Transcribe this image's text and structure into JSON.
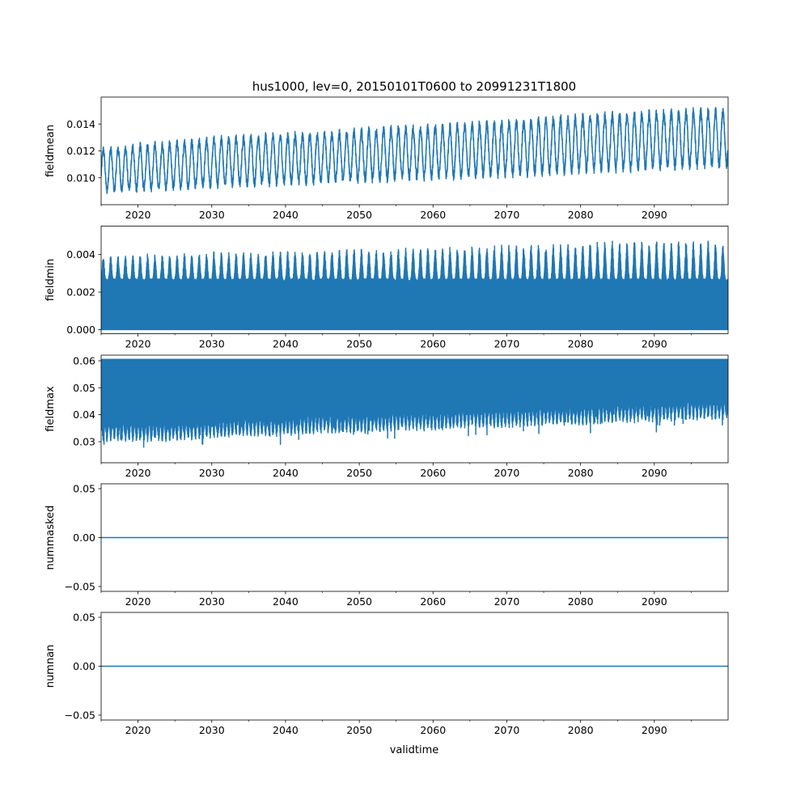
{
  "chart_data": [
    {
      "type": "line",
      "title": "hus1000, lev=0, 20150101T0600 to 20991231T1800",
      "ylabel": "fieldmean",
      "xlabel": "",
      "xlim": [
        2015,
        2100
      ],
      "ylim": [
        0.008,
        0.016
      ],
      "yticks": [
        0.01,
        0.012,
        0.014
      ],
      "ytick_labels": [
        "0.010",
        "0.012",
        "0.014"
      ],
      "color": "#1f77b4",
      "mode": "seasonal",
      "envelope_years": [
        2015,
        2020,
        2025,
        2030,
        2035,
        2040,
        2045,
        2050,
        2055,
        2060,
        2065,
        2070,
        2075,
        2080,
        2085,
        2090,
        2095,
        2100
      ],
      "annual_min": [
        0.0088,
        0.0089,
        0.009,
        0.0092,
        0.0093,
        0.0094,
        0.0095,
        0.0096,
        0.0097,
        0.0098,
        0.0099,
        0.01,
        0.0101,
        0.0103,
        0.0104,
        0.0105,
        0.0106,
        0.0107
      ],
      "annual_max": [
        0.0123,
        0.0126,
        0.0128,
        0.0131,
        0.0133,
        0.0134,
        0.0135,
        0.0137,
        0.0139,
        0.014,
        0.0142,
        0.0144,
        0.0146,
        0.0148,
        0.015,
        0.0151,
        0.0152,
        0.0153
      ]
    },
    {
      "type": "line",
      "ylabel": "fieldmin",
      "xlim": [
        2015,
        2100
      ],
      "ylim": [
        -0.00022,
        0.00552
      ],
      "yticks": [
        0.0,
        0.002,
        0.004
      ],
      "ytick_labels": [
        "0.000",
        "0.002",
        "0.004"
      ],
      "color": "#1f77b4",
      "mode": "dense-from-zero",
      "envelope_years": [
        2015,
        2020,
        2025,
        2030,
        2035,
        2040,
        2045,
        2050,
        2055,
        2060,
        2065,
        2070,
        2075,
        2080,
        2085,
        2090,
        2095,
        2100
      ],
      "annual_min": [
        0,
        0,
        0,
        0,
        0,
        0,
        0,
        0,
        0,
        0,
        0,
        0,
        0,
        0,
        0,
        0,
        0,
        0
      ],
      "annual_max": [
        0.0038,
        0.0039,
        0.0039,
        0.004,
        0.004,
        0.0041,
        0.0041,
        0.0042,
        0.0042,
        0.0043,
        0.0043,
        0.0044,
        0.0044,
        0.0045,
        0.0046,
        0.0046,
        0.0046,
        0.0046
      ]
    },
    {
      "type": "line",
      "ylabel": "fieldmax",
      "xlim": [
        2015,
        2100
      ],
      "ylim": [
        0.0222,
        0.0621
      ],
      "yticks": [
        0.03,
        0.04,
        0.05,
        0.06
      ],
      "ytick_labels": [
        "0.03",
        "0.04",
        "0.05",
        "0.06"
      ],
      "color": "#1f77b4",
      "mode": "dense-to-top",
      "envelope_years": [
        2015,
        2020,
        2025,
        2030,
        2035,
        2040,
        2045,
        2050,
        2055,
        2060,
        2065,
        2070,
        2075,
        2080,
        2085,
        2090,
        2095,
        2100
      ],
      "annual_min": [
        0.03,
        0.03,
        0.03,
        0.031,
        0.032,
        0.032,
        0.033,
        0.033,
        0.034,
        0.034,
        0.035,
        0.035,
        0.036,
        0.036,
        0.037,
        0.037,
        0.038,
        0.038
      ],
      "annual_max": [
        0.0605,
        0.0605,
        0.0605,
        0.0605,
        0.0605,
        0.0605,
        0.0605,
        0.0605,
        0.0605,
        0.0605,
        0.0605,
        0.0605,
        0.0605,
        0.0605,
        0.0605,
        0.0605,
        0.0605,
        0.0605
      ]
    },
    {
      "type": "line",
      "ylabel": "nummasked",
      "xlim": [
        2015,
        2100
      ],
      "ylim": [
        -0.055,
        0.055
      ],
      "yticks": [
        -0.05,
        0.0,
        0.05
      ],
      "ytick_labels": [
        "−0.05",
        "0.00",
        "0.05"
      ],
      "color": "#1f77b4",
      "mode": "constant",
      "value": 0
    },
    {
      "type": "line",
      "ylabel": "numnan",
      "xlabel": "validtime",
      "xlim": [
        2015,
        2100
      ],
      "ylim": [
        -0.055,
        0.055
      ],
      "yticks": [
        -0.05,
        0.0,
        0.05
      ],
      "ytick_labels": [
        "−0.05",
        "0.00",
        "0.05"
      ],
      "color": "#1f77b4",
      "mode": "constant",
      "value": 0
    }
  ],
  "xticks": [
    2020,
    2030,
    2040,
    2050,
    2060,
    2070,
    2080,
    2090
  ],
  "xtick_labels": [
    "2020",
    "2030",
    "2040",
    "2050",
    "2060",
    "2070",
    "2080",
    "2090"
  ],
  "xminor_ticks": [
    2015,
    2025,
    2035,
    2045,
    2055,
    2065,
    2075,
    2085,
    2095
  ]
}
